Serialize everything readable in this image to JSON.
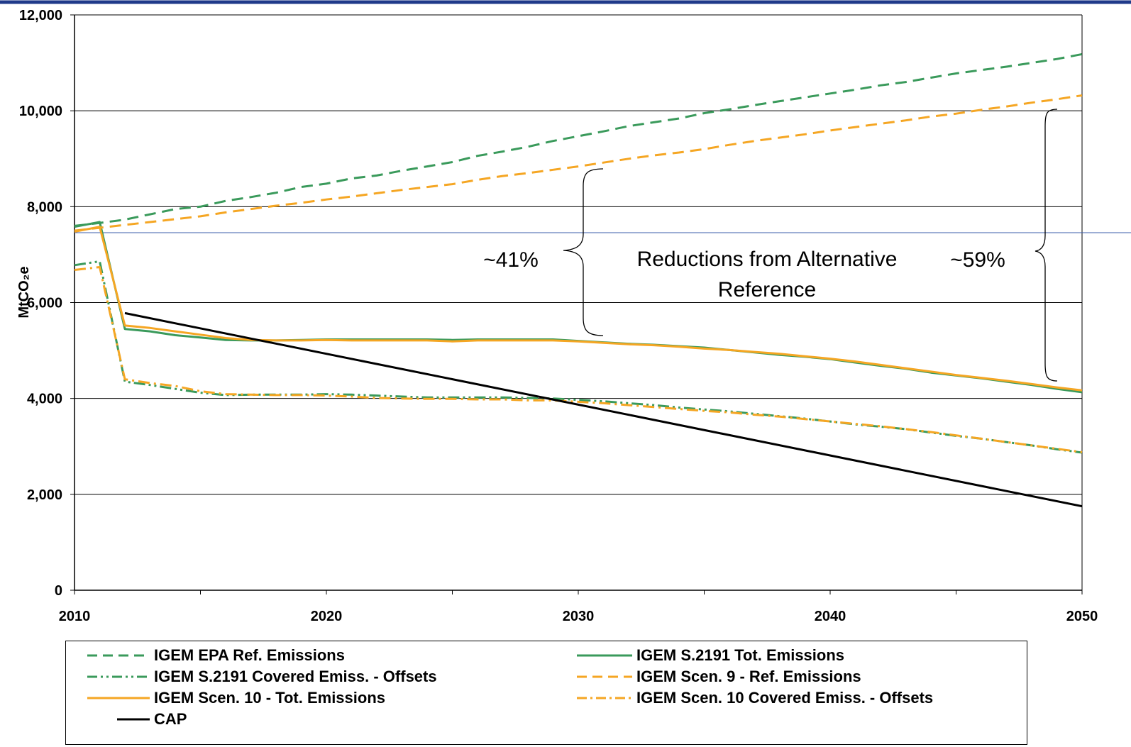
{
  "chart_data": {
    "type": "line",
    "title": "",
    "xlabel": "",
    "ylabel": "MtCO₂e",
    "xlim": [
      2010,
      2050
    ],
    "ylim": [
      0,
      12000
    ],
    "x_ticks": [
      "2010",
      "2020",
      "2030",
      "2040",
      "2050"
    ],
    "y_ticks": [
      "0",
      "2,000",
      "4,000",
      "6,000",
      "8,000",
      "10,000",
      "12,000"
    ],
    "grid": true,
    "legend_position": "bottom",
    "series": [
      {
        "name": "IGEM EPA Ref. Emissions",
        "color": "#3a9a5b",
        "style": "dash",
        "x": [
          2010,
          2011,
          2012,
          2013,
          2014,
          2015,
          2016,
          2017,
          2018,
          2019,
          2020,
          2021,
          2022,
          2023,
          2024,
          2025,
          2026,
          2027,
          2028,
          2029,
          2030,
          2031,
          2032,
          2033,
          2034,
          2035,
          2036,
          2037,
          2038,
          2039,
          2040,
          2041,
          2042,
          2043,
          2044,
          2045,
          2046,
          2047,
          2048,
          2049,
          2050
        ],
        "y": [
          7600,
          7660,
          7730,
          7840,
          7950,
          8000,
          8120,
          8200,
          8290,
          8410,
          8480,
          8590,
          8650,
          8750,
          8840,
          8930,
          9060,
          9150,
          9250,
          9370,
          9470,
          9570,
          9680,
          9760,
          9840,
          9950,
          10030,
          10120,
          10200,
          10280,
          10360,
          10440,
          10530,
          10600,
          10690,
          10780,
          10850,
          10920,
          11000,
          11080,
          11180
        ]
      },
      {
        "name": "IGEM S.2191 Tot. Emissions",
        "color": "#3a9a5b",
        "style": "solid",
        "x": [
          2010,
          2011,
          2012,
          2013,
          2014,
          2015,
          2016,
          2017,
          2018,
          2019,
          2020,
          2021,
          2022,
          2023,
          2024,
          2025,
          2026,
          2027,
          2028,
          2029,
          2030,
          2031,
          2032,
          2033,
          2034,
          2035,
          2036,
          2037,
          2038,
          2039,
          2040,
          2041,
          2042,
          2043,
          2044,
          2045,
          2046,
          2047,
          2048,
          2049,
          2050
        ],
        "y": [
          7580,
          7680,
          5450,
          5400,
          5320,
          5270,
          5220,
          5210,
          5210,
          5220,
          5230,
          5230,
          5230,
          5230,
          5230,
          5220,
          5230,
          5230,
          5230,
          5230,
          5200,
          5170,
          5140,
          5120,
          5090,
          5060,
          5010,
          4960,
          4910,
          4870,
          4820,
          4750,
          4680,
          4620,
          4540,
          4480,
          4420,
          4350,
          4280,
          4200,
          4130
        ]
      },
      {
        "name": "IGEM S.2191 Covered Emiss. - Offsets",
        "color": "#3a9a5b",
        "style": "dashdotdot",
        "x": [
          2010,
          2011,
          2012,
          2013,
          2014,
          2015,
          2016,
          2017,
          2018,
          2019,
          2020,
          2021,
          2022,
          2023,
          2024,
          2025,
          2026,
          2027,
          2028,
          2029,
          2030,
          2031,
          2032,
          2033,
          2034,
          2035,
          2036,
          2037,
          2038,
          2039,
          2040,
          2041,
          2042,
          2043,
          2044,
          2045,
          2046,
          2047,
          2048,
          2049,
          2050
        ],
        "y": [
          6780,
          6860,
          4350,
          4280,
          4200,
          4120,
          4070,
          4080,
          4080,
          4080,
          4090,
          4080,
          4060,
          4040,
          4020,
          4020,
          4020,
          4020,
          4010,
          4000,
          3970,
          3940,
          3900,
          3860,
          3810,
          3770,
          3730,
          3680,
          3630,
          3580,
          3520,
          3460,
          3410,
          3360,
          3290,
          3220,
          3160,
          3090,
          3020,
          2940,
          2870
        ]
      },
      {
        "name": "IGEM Scen. 9 - Ref. Emissions",
        "color": "#f5a623",
        "style": "dash",
        "x": [
          2010,
          2011,
          2012,
          2013,
          2014,
          2015,
          2016,
          2017,
          2018,
          2019,
          2020,
          2021,
          2022,
          2023,
          2024,
          2025,
          2026,
          2027,
          2028,
          2029,
          2030,
          2031,
          2032,
          2033,
          2034,
          2035,
          2036,
          2037,
          2038,
          2039,
          2040,
          2041,
          2042,
          2043,
          2044,
          2045,
          2046,
          2047,
          2048,
          2049,
          2050
        ],
        "y": [
          7500,
          7560,
          7620,
          7680,
          7740,
          7800,
          7880,
          7950,
          8020,
          8080,
          8150,
          8210,
          8280,
          8350,
          8410,
          8470,
          8560,
          8640,
          8700,
          8770,
          8840,
          8920,
          9000,
          9070,
          9130,
          9200,
          9290,
          9370,
          9440,
          9510,
          9590,
          9660,
          9730,
          9800,
          9880,
          9940,
          10020,
          10090,
          10170,
          10240,
          10320
        ]
      },
      {
        "name": "IGEM Scen. 10 - Tot. Emissions",
        "color": "#f5a623",
        "style": "solid",
        "x": [
          2010,
          2011,
          2012,
          2013,
          2014,
          2015,
          2016,
          2017,
          2018,
          2019,
          2020,
          2021,
          2022,
          2023,
          2024,
          2025,
          2026,
          2027,
          2028,
          2029,
          2030,
          2031,
          2032,
          2033,
          2034,
          2035,
          2036,
          2037,
          2038,
          2039,
          2040,
          2041,
          2042,
          2043,
          2044,
          2045,
          2046,
          2047,
          2048,
          2049,
          2050
        ],
        "y": [
          7480,
          7580,
          5520,
          5470,
          5400,
          5330,
          5260,
          5220,
          5210,
          5210,
          5220,
          5210,
          5210,
          5210,
          5210,
          5190,
          5210,
          5210,
          5210,
          5210,
          5190,
          5160,
          5130,
          5110,
          5080,
          5040,
          5010,
          4970,
          4930,
          4880,
          4830,
          4770,
          4700,
          4630,
          4560,
          4490,
          4430,
          4370,
          4300,
          4230,
          4170
        ]
      },
      {
        "name": "IGEM Scen. 10 Covered Emiss. - Offsets",
        "color": "#f5a623",
        "style": "dashdot",
        "x": [
          2010,
          2011,
          2012,
          2013,
          2014,
          2015,
          2016,
          2017,
          2018,
          2019,
          2020,
          2021,
          2022,
          2023,
          2024,
          2025,
          2026,
          2027,
          2028,
          2029,
          2030,
          2031,
          2032,
          2033,
          2034,
          2035,
          2036,
          2037,
          2038,
          2039,
          2040,
          2041,
          2042,
          2043,
          2044,
          2045,
          2046,
          2047,
          2048,
          2049,
          2050
        ],
        "y": [
          6680,
          6740,
          4400,
          4320,
          4260,
          4150,
          4090,
          4080,
          4070,
          4070,
          4060,
          4040,
          4010,
          4000,
          3990,
          3990,
          3980,
          3980,
          3960,
          3960,
          3930,
          3900,
          3860,
          3820,
          3780,
          3740,
          3710,
          3660,
          3620,
          3570,
          3520,
          3470,
          3420,
          3360,
          3300,
          3230,
          3160,
          3090,
          3020,
          2950,
          2880
        ]
      },
      {
        "name": "CAP",
        "color": "#000000",
        "style": "solid",
        "x": [
          2012,
          2050
        ],
        "y": [
          5780,
          1750
        ]
      }
    ],
    "annotations": [
      {
        "text": "~41%"
      },
      {
        "text": "Reductions from Alternative"
      },
      {
        "text": "Reference"
      },
      {
        "text": "~59%"
      }
    ]
  }
}
